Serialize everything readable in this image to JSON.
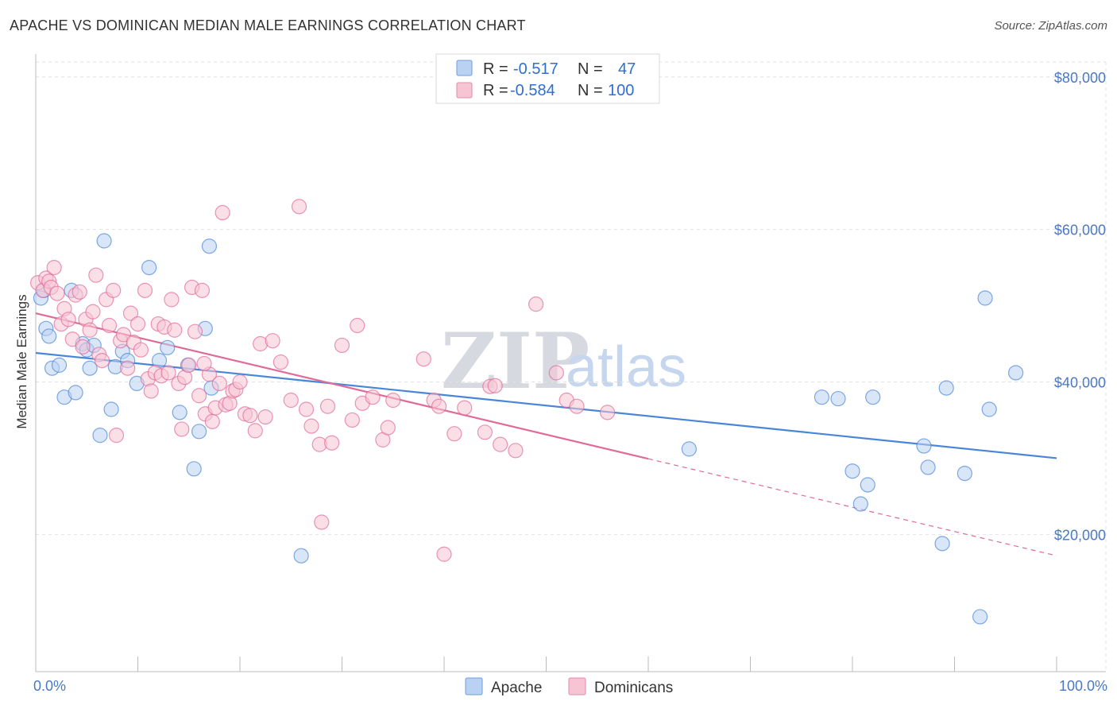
{
  "title": "APACHE VS DOMINICAN MEDIAN MALE EARNINGS CORRELATION CHART",
  "source": "Source: ZipAtlas.com",
  "watermark": {
    "zip": "ZIP",
    "atlas": "atlas"
  },
  "legend": {
    "rows": [
      {
        "r_label": "R =",
        "r_value": "-0.517",
        "n_label": "N =",
        "n_value": "47",
        "color": "#a9c6ee"
      },
      {
        "r_label": "R =",
        "r_value": "-0.584",
        "n_label": "N =",
        "n_value": "100",
        "color": "#f5b8cb"
      }
    ]
  },
  "bottom_legend": [
    {
      "label": "Apache",
      "color": "#a9c6ee"
    },
    {
      "label": "Dominicans",
      "color": "#f5b8cb"
    }
  ],
  "chart_data": {
    "type": "scatter",
    "title": "APACHE VS DOMINICAN MEDIAN MALE EARNINGS CORRELATION CHART",
    "xlabel": "",
    "ylabel": "Median Male Earnings",
    "xlim": [
      0,
      100
    ],
    "ylim": [
      2000,
      83000
    ],
    "x_tick_labels": [
      "0.0%",
      "100.0%"
    ],
    "y_ticks": [
      20000,
      40000,
      60000,
      80000
    ],
    "y_tick_labels": [
      "$20,000",
      "$40,000",
      "$60,000",
      "$80,000"
    ],
    "grid": true,
    "series": [
      {
        "name": "Apache",
        "color": "#4a86d8",
        "fill": "#b9d1f2",
        "trend": {
          "x0": 0,
          "y0": 43800,
          "x1": 100,
          "y1": 30000,
          "dashed_from": null
        },
        "points": [
          [
            0.5,
            51000
          ],
          [
            0.8,
            52000
          ],
          [
            1.0,
            47000
          ],
          [
            1.3,
            46000
          ],
          [
            1.6,
            41800
          ],
          [
            2.3,
            42200
          ],
          [
            2.8,
            38000
          ],
          [
            3.5,
            52000
          ],
          [
            3.9,
            38600
          ],
          [
            4.6,
            45000
          ],
          [
            5.0,
            44200
          ],
          [
            5.3,
            41800
          ],
          [
            5.7,
            44800
          ],
          [
            6.3,
            33000
          ],
          [
            6.7,
            58500
          ],
          [
            7.4,
            36400
          ],
          [
            7.8,
            42000
          ],
          [
            8.5,
            44000
          ],
          [
            9.0,
            42800
          ],
          [
            9.9,
            39800
          ],
          [
            11.1,
            55000
          ],
          [
            12.1,
            42800
          ],
          [
            12.9,
            44500
          ],
          [
            14.1,
            36000
          ],
          [
            14.9,
            42200
          ],
          [
            15.5,
            28600
          ],
          [
            16.0,
            33500
          ],
          [
            16.6,
            47000
          ],
          [
            17.0,
            57800
          ],
          [
            17.2,
            39200
          ],
          [
            26.0,
            17200
          ],
          [
            64.0,
            31200
          ],
          [
            77.0,
            38000
          ],
          [
            78.6,
            37800
          ],
          [
            80.0,
            28300
          ],
          [
            80.8,
            24000
          ],
          [
            81.5,
            26500
          ],
          [
            82.0,
            38000
          ],
          [
            87.0,
            31600
          ],
          [
            87.4,
            28800
          ],
          [
            88.8,
            18800
          ],
          [
            89.2,
            39200
          ],
          [
            91.0,
            28000
          ],
          [
            92.5,
            9200
          ],
          [
            93.0,
            51000
          ],
          [
            93.4,
            36400
          ],
          [
            96.0,
            41200
          ]
        ]
      },
      {
        "name": "Dominicans",
        "color": "#e06a98",
        "fill": "#f7c4d4",
        "trend": {
          "x0": 0,
          "y0": 49000,
          "x1": 100,
          "y1": 17200,
          "dashed_from": 60
        },
        "points": [
          [
            0.2,
            53000
          ],
          [
            0.7,
            52000
          ],
          [
            1.0,
            53600
          ],
          [
            1.3,
            53200
          ],
          [
            1.5,
            52400
          ],
          [
            1.8,
            55000
          ],
          [
            2.1,
            51600
          ],
          [
            2.5,
            47600
          ],
          [
            2.8,
            49600
          ],
          [
            3.2,
            48200
          ],
          [
            3.6,
            45600
          ],
          [
            3.9,
            51400
          ],
          [
            4.3,
            51800
          ],
          [
            4.6,
            44600
          ],
          [
            4.9,
            48200
          ],
          [
            5.3,
            46800
          ],
          [
            5.6,
            49200
          ],
          [
            5.9,
            54000
          ],
          [
            6.2,
            43600
          ],
          [
            6.5,
            42800
          ],
          [
            6.9,
            50800
          ],
          [
            7.2,
            47400
          ],
          [
            7.6,
            52000
          ],
          [
            7.9,
            33000
          ],
          [
            8.3,
            45400
          ],
          [
            8.6,
            46200
          ],
          [
            9.0,
            41800
          ],
          [
            9.3,
            49000
          ],
          [
            9.6,
            45200
          ],
          [
            10.0,
            47600
          ],
          [
            10.3,
            44200
          ],
          [
            10.7,
            52000
          ],
          [
            11.0,
            40400
          ],
          [
            11.3,
            38800
          ],
          [
            11.7,
            41200
          ],
          [
            12.0,
            47600
          ],
          [
            12.3,
            40800
          ],
          [
            12.6,
            47200
          ],
          [
            13.0,
            41200
          ],
          [
            13.3,
            50800
          ],
          [
            13.6,
            46800
          ],
          [
            14.0,
            39800
          ],
          [
            14.3,
            33800
          ],
          [
            14.6,
            40600
          ],
          [
            15.0,
            42200
          ],
          [
            15.3,
            52400
          ],
          [
            15.6,
            46600
          ],
          [
            16.0,
            38200
          ],
          [
            16.3,
            52000
          ],
          [
            16.6,
            35800
          ],
          [
            17.0,
            41000
          ],
          [
            17.3,
            34800
          ],
          [
            17.6,
            36600
          ],
          [
            18.0,
            39800
          ],
          [
            18.3,
            62200
          ],
          [
            18.6,
            37000
          ],
          [
            19.0,
            37200
          ],
          [
            19.3,
            38800
          ],
          [
            19.6,
            39000
          ],
          [
            20.0,
            40000
          ],
          [
            20.5,
            35800
          ],
          [
            21.0,
            35600
          ],
          [
            21.5,
            33600
          ],
          [
            22.0,
            45000
          ],
          [
            22.5,
            35400
          ],
          [
            23.2,
            45400
          ],
          [
            24.0,
            42600
          ],
          [
            25.0,
            37600
          ],
          [
            25.8,
            63000
          ],
          [
            26.5,
            36400
          ],
          [
            27.0,
            34200
          ],
          [
            27.8,
            31800
          ],
          [
            28.0,
            21600
          ],
          [
            28.6,
            36800
          ],
          [
            29.0,
            32000
          ],
          [
            30.0,
            44800
          ],
          [
            31.0,
            35000
          ],
          [
            31.5,
            47400
          ],
          [
            32.0,
            37200
          ],
          [
            33.0,
            38000
          ],
          [
            34.0,
            32400
          ],
          [
            34.5,
            34000
          ],
          [
            35.0,
            37600
          ],
          [
            38.0,
            43000
          ],
          [
            39.0,
            37600
          ],
          [
            39.5,
            36800
          ],
          [
            40.0,
            17400
          ],
          [
            41.0,
            33200
          ],
          [
            42.0,
            36600
          ],
          [
            44.0,
            33400
          ],
          [
            44.5,
            39400
          ],
          [
            45.0,
            39500
          ],
          [
            45.5,
            31800
          ],
          [
            47.0,
            31000
          ],
          [
            49.0,
            50200
          ],
          [
            51.0,
            41200
          ],
          [
            52.0,
            37600
          ],
          [
            53.0,
            36800
          ],
          [
            56.0,
            36000
          ],
          [
            16.5,
            42400
          ]
        ]
      }
    ]
  }
}
